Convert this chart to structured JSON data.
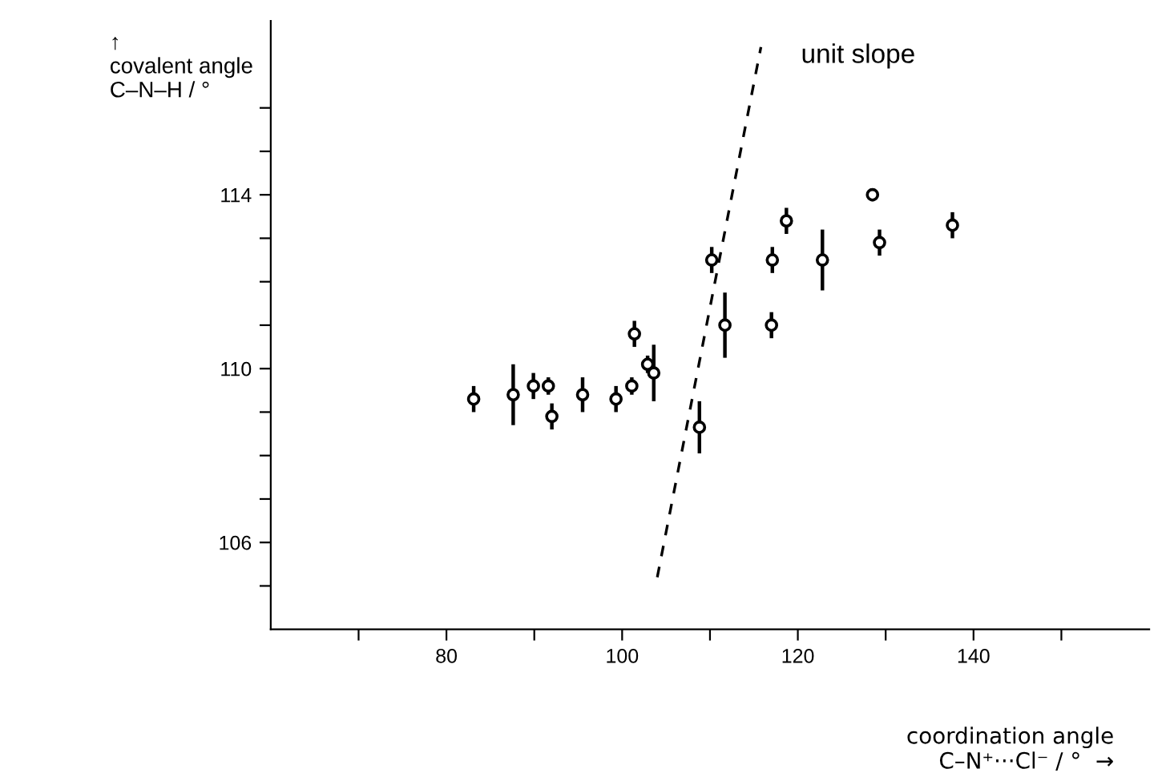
{
  "chart_data": {
    "type": "scatter",
    "xlabel": "coordination angle\nC–N⁺···Cl⁻ / °  →",
    "ylabel": "↑\ncovalent angle\nC–N–H / °",
    "xlim": [
      60,
      160
    ],
    "ylim": [
      104,
      118
    ],
    "xticks": [
      {
        "value": 70,
        "label": null
      },
      80,
      {
        "value": 90,
        "label": null
      },
      100,
      {
        "value": 110,
        "label": null
      },
      120,
      {
        "value": 130,
        "label": null
      },
      140,
      {
        "value": 150,
        "label": null
      }
    ],
    "yticks": [
      {
        "value": 105,
        "label": null
      },
      106,
      {
        "value": 107,
        "label": null
      },
      {
        "value": 108,
        "label": null
      },
      {
        "value": 109,
        "label": null
      },
      110,
      {
        "value": 111,
        "label": null
      },
      {
        "value": 112,
        "label": null
      },
      {
        "value": 113,
        "label": null
      },
      114,
      {
        "value": 115,
        "label": null
      },
      {
        "value": 116,
        "label": null
      }
    ],
    "grid": false,
    "legend": false,
    "marker": "circle",
    "series": [
      {
        "color": "#000000",
        "x": [
          83.1,
          87.6,
          89.9,
          91.6,
          92.0,
          95.5,
          99.3,
          101.1,
          101.4,
          102.9,
          103.6,
          108.8,
          110.2,
          111.7,
          117.1,
          117.0,
          118.7,
          122.8,
          128.5,
          129.3,
          137.6
        ],
        "values": [
          109.3,
          109.4,
          109.6,
          109.6,
          108.9,
          109.4,
          109.3,
          109.6,
          110.8,
          110.1,
          109.9,
          108.65,
          112.5,
          111.0,
          112.5,
          111.0,
          113.4,
          112.5,
          114.0,
          112.9,
          113.3
        ],
        "errors": [
          0.3,
          0.7,
          0.3,
          0.2,
          0.3,
          0.4,
          0.3,
          0.2,
          0.3,
          0.2,
          0.65,
          0.6,
          0.3,
          0.75,
          0.3,
          0.3,
          0.3,
          0.7,
          0.15,
          0.3,
          0.3
        ]
      },
      {
        "type": "line",
        "name": "unit slope",
        "color": "#000000",
        "line_style": "dashed",
        "marker": "none",
        "x": [
          104.0,
          115.8
        ],
        "values": [
          105.2,
          117.4
        ]
      }
    ]
  }
}
